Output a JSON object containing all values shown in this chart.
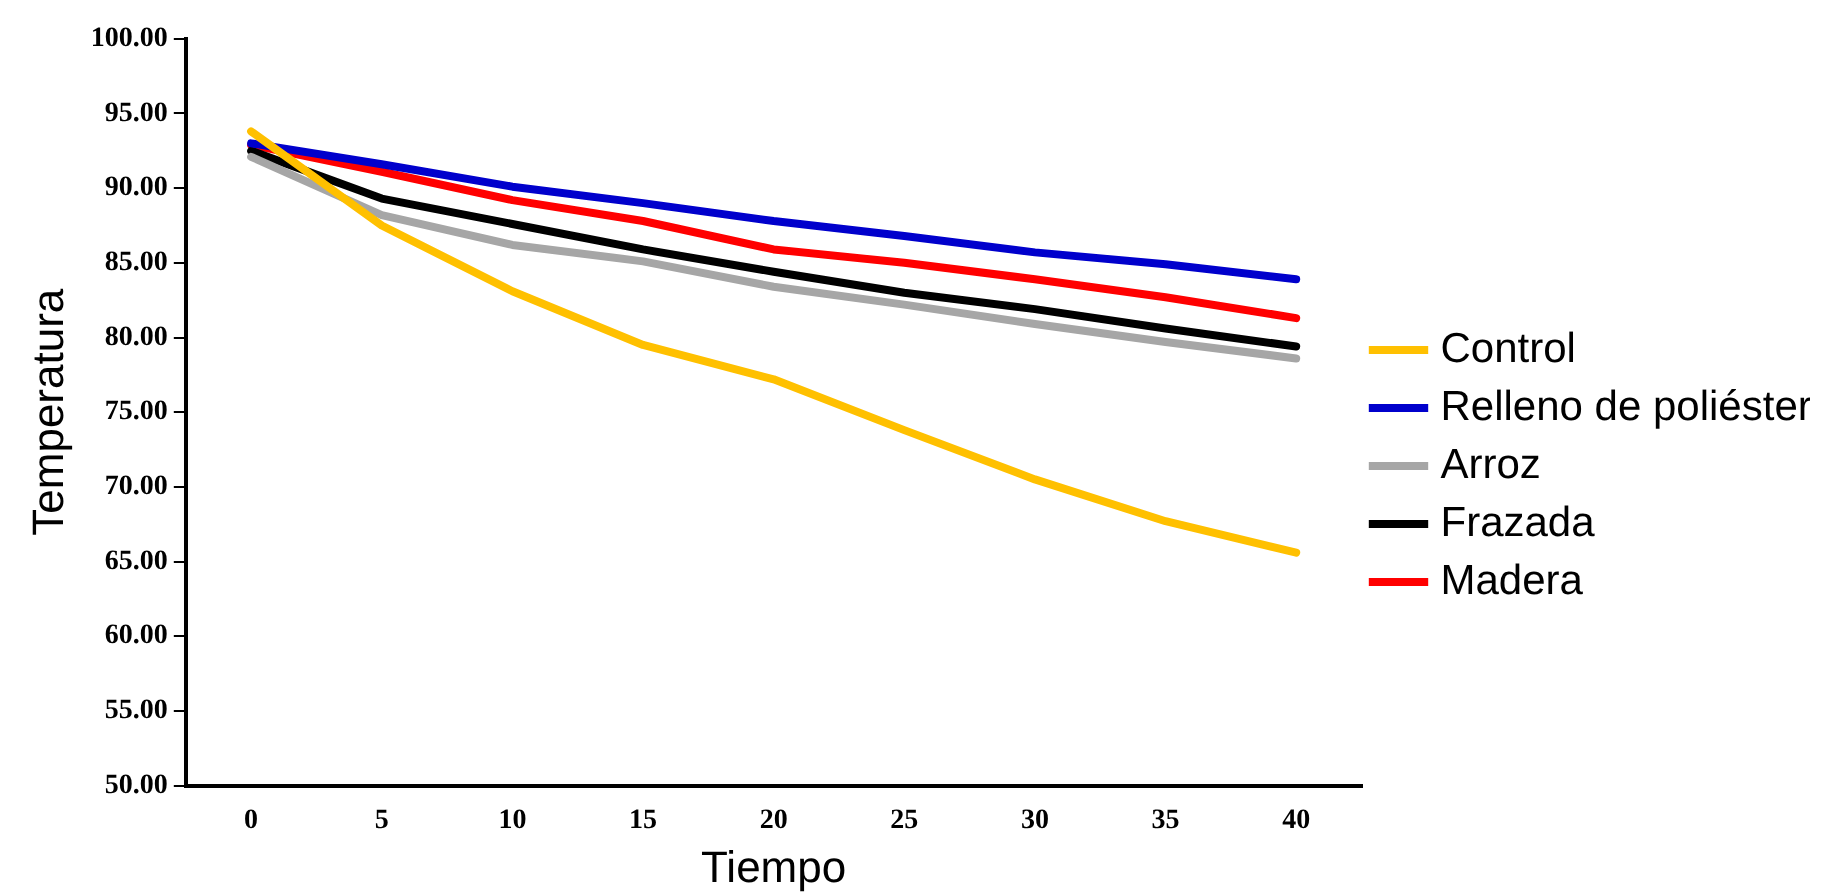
{
  "chart_data": {
    "type": "line",
    "xlabel": "Tiempo",
    "ylabel": "Temperatura",
    "categories": [
      "0",
      "5",
      "10",
      "15",
      "20",
      "25",
      "30",
      "35",
      "40"
    ],
    "ylim": [
      50,
      100
    ],
    "yticks": [
      {
        "value": 50,
        "label": "50.00"
      },
      {
        "value": 55,
        "label": "55.00"
      },
      {
        "value": 60,
        "label": "60.00"
      },
      {
        "value": 65,
        "label": "65.00"
      },
      {
        "value": 70,
        "label": "70.00"
      },
      {
        "value": 75,
        "label": "75.00"
      },
      {
        "value": 80,
        "label": "80.00"
      },
      {
        "value": 85,
        "label": "85.00"
      },
      {
        "value": 90,
        "label": "90.00"
      },
      {
        "value": 95,
        "label": "95.00"
      },
      {
        "value": 100,
        "label": "100.00"
      }
    ],
    "grid": false,
    "legend": "right",
    "marker": "none",
    "line_style": "solid",
    "series": [
      {
        "name": "Control",
        "color": "#ffc000",
        "values": [
          93.8,
          87.5,
          83.1,
          79.5,
          77.2,
          73.8,
          70.5,
          67.7,
          65.6
        ]
      },
      {
        "name": "Relleno de poliéster",
        "color": "#0000cc",
        "values": [
          93.0,
          91.6,
          90.1,
          89.0,
          87.8,
          86.8,
          85.7,
          84.9,
          83.9
        ]
      },
      {
        "name": "Arroz",
        "color": "#a6a6a6",
        "values": [
          92.1,
          88.2,
          86.2,
          85.1,
          83.4,
          82.2,
          80.9,
          79.7,
          78.6
        ]
      },
      {
        "name": "Frazada",
        "color": "#000000",
        "values": [
          92.5,
          89.3,
          87.6,
          85.9,
          84.4,
          83.0,
          81.9,
          80.6,
          79.4
        ]
      },
      {
        "name": "Madera",
        "color": "#ff0000",
        "values": [
          92.9,
          91.1,
          89.2,
          87.8,
          85.9,
          85.0,
          83.9,
          82.7,
          81.3
        ]
      }
    ]
  }
}
